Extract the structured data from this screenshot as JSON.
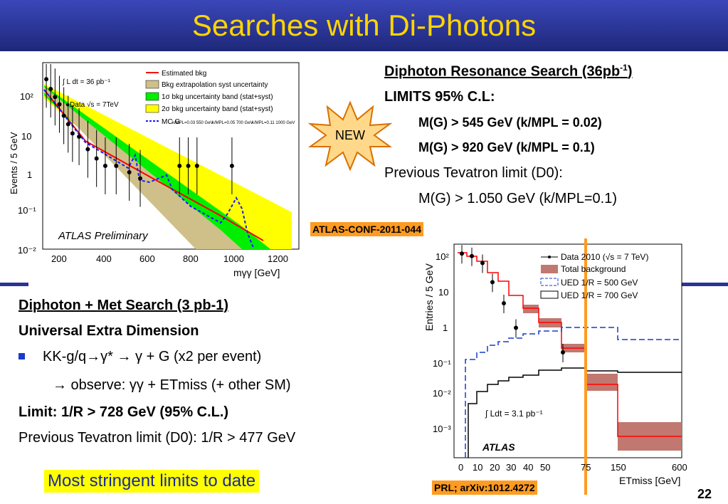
{
  "slide": {
    "title": "Searches with Di-Photons",
    "page_number": "22",
    "accent_color": "#ffd500",
    "band_color": "#2a3494"
  },
  "resonance": {
    "heading": "Diphoton Resonance Search (36pb",
    "heading_sup": "-1",
    "heading_close": ")",
    "limits": "LIMITS 95% C.L:",
    "limit1": "M(G) > 545 GeV (k/MPL = 0.02)",
    "limit2": "M(G) > 920 GeV (k/MPL = 0.1)",
    "prev": "Previous Tevatron limit (D0):",
    "prev_value": "M(G) > 1.050 GeV (k/MPL=0.1)",
    "badge": "NEW",
    "conf_tag": "ATLAS-CONF-2011-044"
  },
  "met": {
    "heading": "Diphoton + Met Search (3 pb-1)",
    "model": "Universal Extra Dimension",
    "decay": "KK-g/q→γ* → γ + G (x2 per event)",
    "observe": "→ observe: γγ + ETmiss (+ other SM)",
    "limit": "Limit: 1/R > 728 GeV (95% C.L.)",
    "prev": "Previous Tevatron limit (D0): 1/R > 477 GeV",
    "ref_tag": "PRL; arXiv:1012.4272"
  },
  "highlight": "Most stringent limits to date",
  "chart_data": [
    {
      "type": "line",
      "ylabel": "Events / 5 GeV",
      "xlabel": "mγγ [GeV]",
      "y_scale": "log",
      "ylim": [
        0.01,
        300
      ],
      "xlim": [
        140,
        1300
      ],
      "x_ticks": [
        "200",
        "400",
        "600",
        "800",
        "1000",
        "1200"
      ],
      "y_ticks": [
        "10²",
        "10",
        "1",
        "10⁻¹",
        "10⁻²"
      ],
      "annotations": [
        "∫ L dt = 36 pb⁻¹",
        "●Data √s = 7TeV",
        "ATLAS Preliminary"
      ],
      "legend_position": "top-right",
      "legend": [
        "Estimated bkg",
        "Bkg extrapolation syst uncertainty",
        "1σ bkg uncertainty band (stat+syst)",
        "2σ bkg uncertainty band (stat+syst)",
        "MC G"
      ],
      "mc_signal_labels": [
        "k/MPL=0.03 550 GeV",
        "k/MPL=0.05 700 GeV",
        "k/MPL=0.11 1000 GeV"
      ],
      "series": [
        {
          "name": "Estimated bkg",
          "color": "#ff0000",
          "x": [
            140,
            300,
            500,
            700,
            900,
            1100
          ],
          "y": [
            180,
            8,
            0.8,
            0.15,
            0.04,
            0.012
          ]
        },
        {
          "name": "MC G",
          "color": "#1a1aff",
          "x": [
            140,
            300,
            450,
            550,
            620,
            700,
            760,
            850,
            950,
            1000,
            1050,
            1120
          ],
          "y": [
            180,
            8,
            1.2,
            4,
            0.5,
            2,
            0.25,
            0.1,
            0.5,
            0.4,
            0.03,
            0.01
          ]
        },
        {
          "name": "Data",
          "x": [
            150,
            170,
            190,
            210,
            230,
            250,
            270,
            300,
            340,
            380,
            420,
            470,
            530,
            580,
            760,
            800,
            840,
            1000
          ],
          "y": [
            120,
            70,
            45,
            30,
            16,
            10,
            6,
            5,
            2.5,
            1.5,
            1,
            1,
            0.7,
            0.5,
            1,
            1,
            1,
            1
          ]
        }
      ]
    },
    {
      "type": "line",
      "ylabel": "Entries / 5 GeV",
      "xlabel": "ETmiss [GeV]",
      "y_scale": "log",
      "ylim": [
        0.0002,
        200
      ],
      "x_ticks": [
        "0",
        "10",
        "20",
        "30",
        "40",
        "50",
        "75",
        "150",
        "600"
      ],
      "y_ticks": [
        "10²",
        "10",
        "1",
        "10⁻¹",
        "10⁻²",
        "10⁻³"
      ],
      "annotations": [
        "∫ Ldt = 3.1 pb⁻¹",
        "ATLAS"
      ],
      "legend_position": "top-right",
      "legend": [
        "Data 2010 (√s = 7 TeV)",
        "Total background",
        "UED 1/R = 500 GeV",
        "UED 1/R = 700 GeV"
      ],
      "limit_line_x": "75",
      "series": [
        {
          "name": "Data 2010 (√s = 7 TeV)",
          "x": [
            "2.5",
            "7.5",
            "15",
            "25",
            "35",
            "45",
            "62.5"
          ],
          "y": [
            130,
            110,
            70,
            20,
            5,
            1,
            0.2
          ]
        },
        {
          "name": "Total background",
          "x": [
            "0-5",
            "5-10",
            "10-20",
            "20-30",
            "30-40",
            "40-50",
            "50-75",
            "75-150",
            "150-600"
          ],
          "y": [
            120,
            110,
            60,
            20,
            5,
            1.1,
            0.2,
            0.02,
            0.0005
          ]
        },
        {
          "name": "UED 1/R = 500 GeV",
          "x": [
            "0-5",
            "5-10",
            "10-20",
            "20-30",
            "30-40",
            "40-50",
            "50-75",
            "75-150",
            "150-600"
          ],
          "y": [
            0.0002,
            0.02,
            0.1,
            0.2,
            0.3,
            0.4,
            0.6,
            0.9,
            0.4
          ]
        },
        {
          "name": "UED 1/R = 700 GeV",
          "x": [
            "0-5",
            "5-10",
            "10-20",
            "20-30",
            "30-40",
            "40-50",
            "50-75",
            "75-150",
            "150-600"
          ],
          "y": [
            0.0002,
            0.002,
            0.008,
            0.012,
            0.015,
            0.02,
            0.03,
            0.04,
            0.03
          ]
        }
      ]
    }
  ]
}
